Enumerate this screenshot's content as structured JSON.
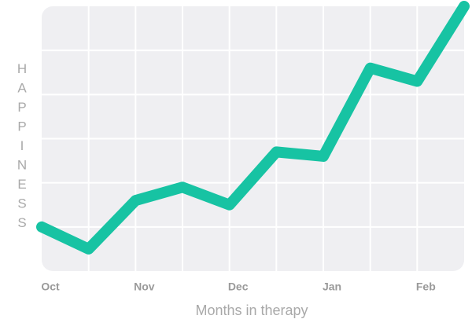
{
  "chart_data": {
    "type": "line",
    "categories": [
      "Oct",
      null,
      "Nov",
      null,
      "Dec",
      null,
      "Jan",
      null,
      "Feb",
      null
    ],
    "values": [
      1.0,
      0.5,
      1.6,
      1.9,
      1.5,
      2.7,
      2.6,
      4.6,
      4.3,
      6.0
    ],
    "color": "#17c3a3",
    "ylim": [
      0,
      6
    ],
    "yticks": [
      1,
      2,
      3,
      4,
      5
    ],
    "grid": true,
    "x_label": "Months in therapy",
    "y_label": "HAPPINESS"
  }
}
